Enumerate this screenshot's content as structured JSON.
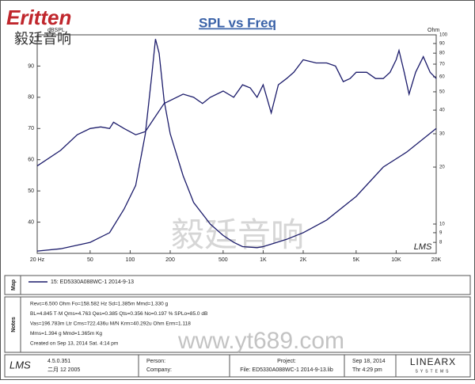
{
  "logo": {
    "name": "Eritten",
    "chinese": "毅廷音响"
  },
  "chart_data": {
    "type": "line",
    "title": "SPL vs Freq",
    "y_unit": "dBSPL",
    "y2_unit": "Ohm",
    "xlog": true,
    "y2log": true,
    "grid": false,
    "color": "#1c1c6b",
    "xlim": [
      20,
      20000
    ],
    "xticks": [
      {
        "value": 20,
        "label": "20 Hz"
      },
      50,
      100,
      200,
      500,
      {
        "value": 1000,
        "label": "1K"
      },
      {
        "value": 2000,
        "label": "2K"
      },
      {
        "value": 5000,
        "label": "5K"
      },
      {
        "value": 10000,
        "label": "10K"
      },
      {
        "value": 20000,
        "label": "20K"
      }
    ],
    "ylim": [
      30,
      100
    ],
    "yticks": [
      40,
      50,
      60,
      70,
      80,
      90
    ],
    "y2lim": [
      7,
      100
    ],
    "y2ticks": [
      8,
      9,
      10,
      20,
      30,
      40,
      50,
      60,
      70,
      80,
      90,
      100
    ],
    "series": [
      {
        "color": "#1c1c6b",
        "x": [
          20,
          30,
          40,
          50,
          60,
          70,
          75,
          90,
          110,
          130,
          150,
          180,
          250,
          300,
          350,
          400,
          500,
          600,
          700,
          800,
          900,
          1000,
          1150,
          1300,
          1500,
          1700,
          2000,
          2500,
          3000,
          3500,
          4000,
          4500,
          5000,
          6000,
          7000,
          8000,
          9000,
          10000,
          10500,
          11500,
          12500,
          14000,
          16000,
          18000,
          20000
        ],
        "values": [
          58,
          63,
          68,
          70,
          70.5,
          70,
          72,
          70,
          68,
          69,
          73,
          78,
          81,
          80,
          78,
          80,
          82,
          80,
          84,
          83,
          80,
          84,
          75,
          84,
          86,
          88,
          92,
          91,
          91,
          90,
          85,
          86,
          88,
          88,
          86,
          86,
          88,
          92,
          95,
          88,
          81,
          88,
          93,
          88,
          86
        ]
      },
      {
        "color": "#1c1c6b",
        "axis": "y2",
        "x": [
          20,
          30,
          50,
          70,
          90,
          110,
          130,
          145,
          155,
          165,
          180,
          200,
          250,
          300,
          400,
          500,
          600,
          700,
          900,
          1000,
          1200,
          1500,
          2000,
          3000,
          5000,
          8000,
          12000,
          20000
        ],
        "values": [
          7.2,
          7.4,
          8,
          9,
          12,
          16,
          30,
          60,
          95,
          80,
          45,
          30,
          18,
          13,
          10,
          8.7,
          8,
          7.6,
          7.5,
          7.6,
          7.9,
          8.3,
          9,
          10.5,
          14,
          20,
          24,
          32
        ]
      }
    ],
    "legend": "15: ED5330A088WC-1   2014-9-13"
  },
  "watermark": {
    "chinese": "毅廷音响",
    "url": "www.yt689.com"
  },
  "brand_mark": "LMS",
  "panels": {
    "map": "Map",
    "notes": "Notes"
  },
  "notes": [
    "Revc=6.500 Ohm  Fo=158.582 Hz  Sd=1.385m Mmd=1.330 g",
    "BL=4.845 T·M  Qms=4.763  Qes=0.385  Qts=0.356  No=0.197 %  SPLo=85.0 dB",
    "Vas=196.783m Ltr  Cms=722.436u M/N  Krm=40.292u Ohm  Erm=1.118",
    "Mms=1.394 g  Mmd=1.365m Kg",
    "Created on Sep 13, 2014  Sat. 4:14 pm"
  ],
  "footer": {
    "logo": "LMS",
    "version": "4.5.0.351",
    "build": "二月 12 2005",
    "person": "Person:",
    "company": "Company:",
    "project": "Project:",
    "file": "File: ED5330A088WC-1  2014-9-13.lib",
    "date": "Sep 18, 2014",
    "time": "Thr  4:29 pm",
    "vendor": "LINEARX",
    "vendor_sub": "SYSTEMS"
  }
}
